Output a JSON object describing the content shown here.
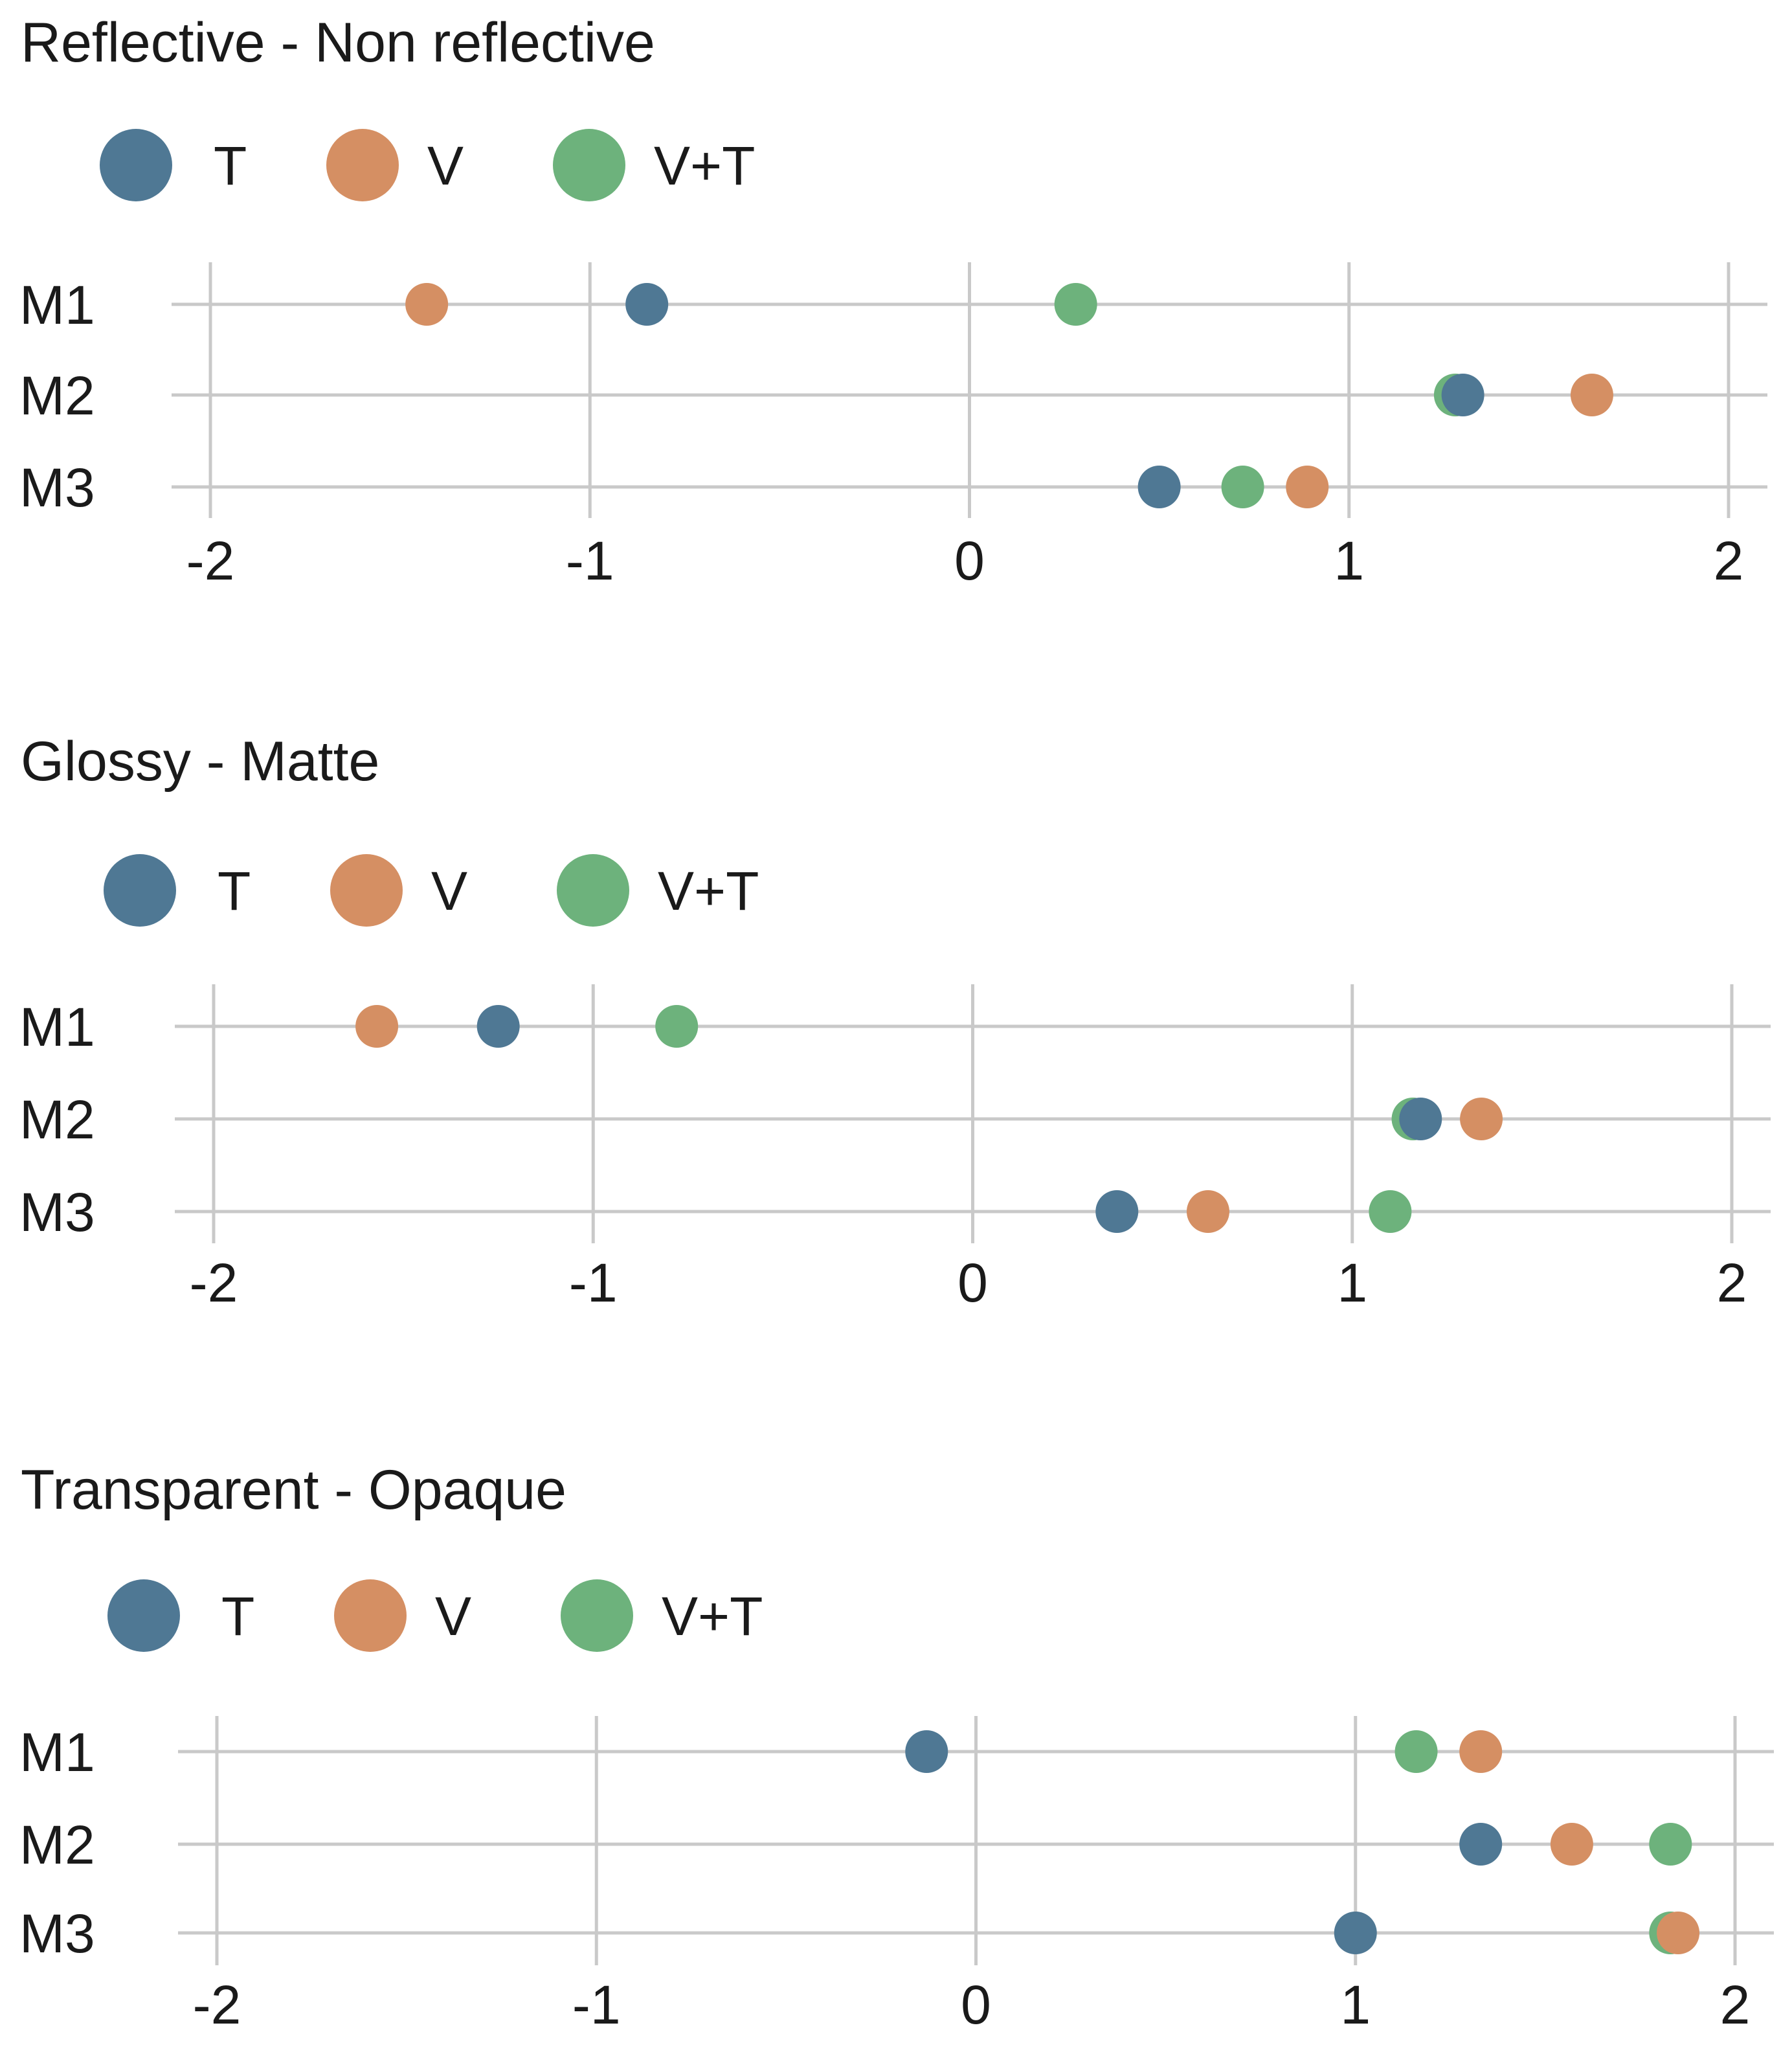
{
  "chart_data": [
    {
      "type": "scatter",
      "title": "Reflective - Non reflective",
      "legend": [
        {
          "label": "T",
          "color": "#4f7894"
        },
        {
          "label": "V",
          "color": "#d58f63"
        },
        {
          "label": "V+T",
          "color": "#6db27c"
        }
      ],
      "rows": [
        "M1",
        "M2",
        "M3"
      ],
      "xlim": [
        -2,
        2
      ],
      "ticks": [
        "-2",
        "-1",
        "0",
        "1",
        "2"
      ],
      "series": [
        {
          "name": "T",
          "values": [
            -0.85,
            1.3,
            0.5
          ]
        },
        {
          "name": "V",
          "values": [
            -1.43,
            1.64,
            0.89
          ]
        },
        {
          "name": "V+T",
          "values": [
            0.28,
            1.28,
            0.72
          ]
        }
      ]
    },
    {
      "type": "scatter",
      "title": "Glossy - Matte",
      "legend": [
        {
          "label": "T",
          "color": "#4f7894"
        },
        {
          "label": "V",
          "color": "#d58f63"
        },
        {
          "label": "V+T",
          "color": "#6db27c"
        }
      ],
      "rows": [
        "M1",
        "M2",
        "M3"
      ],
      "xlim": [
        -2,
        2
      ],
      "ticks": [
        "-2",
        "-1",
        "0",
        "1",
        "2"
      ],
      "series": [
        {
          "name": "T",
          "values": [
            -1.25,
            1.18,
            0.38
          ]
        },
        {
          "name": "V",
          "values": [
            -1.57,
            1.34,
            0.62
          ]
        },
        {
          "name": "V+T",
          "values": [
            -0.78,
            1.16,
            1.1
          ]
        }
      ]
    },
    {
      "type": "scatter",
      "title": "Transparent - Opaque",
      "legend": [
        {
          "label": "T",
          "color": "#4f7894"
        },
        {
          "label": "V",
          "color": "#d58f63"
        },
        {
          "label": "V+T",
          "color": "#6db27c"
        }
      ],
      "rows": [
        "M1",
        "M2",
        "M3"
      ],
      "xlim": [
        -2,
        2
      ],
      "ticks": [
        "-2",
        "-1",
        "0",
        "1",
        "2"
      ],
      "series": [
        {
          "name": "T",
          "values": [
            -0.13,
            1.33,
            1.0
          ]
        },
        {
          "name": "V",
          "values": [
            1.33,
            1.57,
            1.85
          ]
        },
        {
          "name": "V+T",
          "values": [
            1.16,
            1.83,
            1.83
          ]
        }
      ]
    }
  ]
}
